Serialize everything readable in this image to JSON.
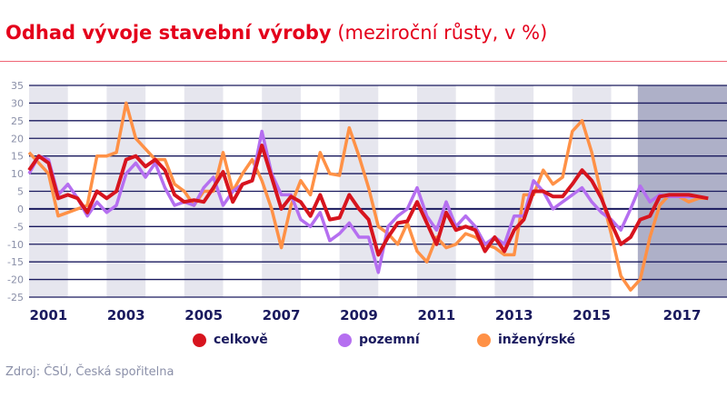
{
  "header": {
    "title_bold": "Odhad vývoje stavební výroby",
    "title_sub": "(meziroční růsty, v %)"
  },
  "source": "Zdroj: ČSÚ, Česká spořitelna",
  "colors": {
    "celkove": "#d7141e",
    "pozemni": "#b56ff0",
    "inzenyrske": "#ff9146",
    "grid": "#1a1a5e",
    "band": "#e6e6ee",
    "forecast": "#aeb0c8"
  },
  "chart_data": {
    "type": "line",
    "title": "Odhad vývoje stavební výroby (meziroční růsty, v %)",
    "ylim": [
      -25,
      35
    ],
    "yticks": [
      35,
      30,
      25,
      20,
      15,
      10,
      5,
      0,
      -5,
      -10,
      -15,
      -20,
      -25
    ],
    "xticks": [
      "2001",
      "2003",
      "2005",
      "2007",
      "2009",
      "2011",
      "2013",
      "2015",
      "2017"
    ],
    "x_unit": "quarter",
    "x_first": "2001Q1",
    "grid": true,
    "forecast_shaded_from": "2016Q3",
    "legend": "bottom",
    "series": [
      {
        "name": "celkově",
        "key": "celkove",
        "values": [
          11,
          15,
          13,
          3,
          4,
          3,
          -1,
          5,
          3,
          5,
          14,
          15,
          12,
          14,
          11,
          4,
          2,
          2.5,
          2,
          6,
          10.5,
          2,
          7,
          8,
          18,
          9,
          0,
          3.5,
          2,
          -2,
          4,
          -3,
          -2.5,
          4,
          0,
          -3,
          -13,
          -8,
          -4,
          -3.5,
          2,
          -4,
          -10,
          -1,
          -6,
          -5,
          -6,
          -12,
          -8,
          -12,
          -6,
          -3,
          5,
          5,
          3.5,
          3.5,
          7,
          11,
          8,
          3,
          -4,
          -10,
          -8,
          -3,
          -2,
          3.5,
          4,
          4,
          4,
          3.5,
          3
        ]
      },
      {
        "name": "pozemní",
        "key": "pozemni",
        "values": [
          10,
          15,
          14,
          4,
          7,
          3,
          -2,
          2,
          -1,
          1,
          10,
          13,
          9,
          13,
          6,
          1,
          2,
          1,
          6,
          9,
          1,
          5,
          7,
          8,
          22,
          10,
          4,
          4,
          -3,
          -5,
          -1,
          -9,
          -7,
          -4,
          -8,
          -8,
          -18,
          -5,
          -2,
          0,
          6,
          -2,
          -6,
          2,
          -5,
          -2,
          -5,
          -10,
          -8,
          -10,
          -2,
          -2,
          8,
          5,
          0,
          2,
          4,
          6,
          2,
          -1,
          -3,
          -6,
          0,
          6.5,
          2,
          4,
          3.5,
          3.5,
          3.5,
          3.5,
          3
        ]
      },
      {
        "name": "inženýrské",
        "key": "inzenyrske",
        "values": [
          16,
          13,
          10,
          -2,
          -1,
          0,
          1,
          15,
          15,
          16,
          30,
          20,
          17,
          14,
          14,
          7,
          5,
          1,
          5,
          5,
          16,
          5,
          10,
          14,
          8,
          0,
          -11,
          1,
          8,
          4,
          16,
          10,
          9.5,
          23,
          15,
          6,
          -5,
          -7,
          -10,
          -4,
          -12,
          -15,
          -8,
          -11,
          -10,
          -7,
          -8,
          -10,
          -11,
          -13,
          -13,
          4,
          4,
          11,
          7,
          9,
          22,
          25,
          16,
          4,
          -7,
          -19,
          -23,
          -20,
          -8,
          1,
          4,
          3.5,
          2,
          3,
          3
        ]
      }
    ]
  },
  "legend": [
    {
      "label": "celkově",
      "key": "celkove"
    },
    {
      "label": "pozemní",
      "key": "pozemni"
    },
    {
      "label": "inženýrské",
      "key": "inzenyrske"
    }
  ]
}
